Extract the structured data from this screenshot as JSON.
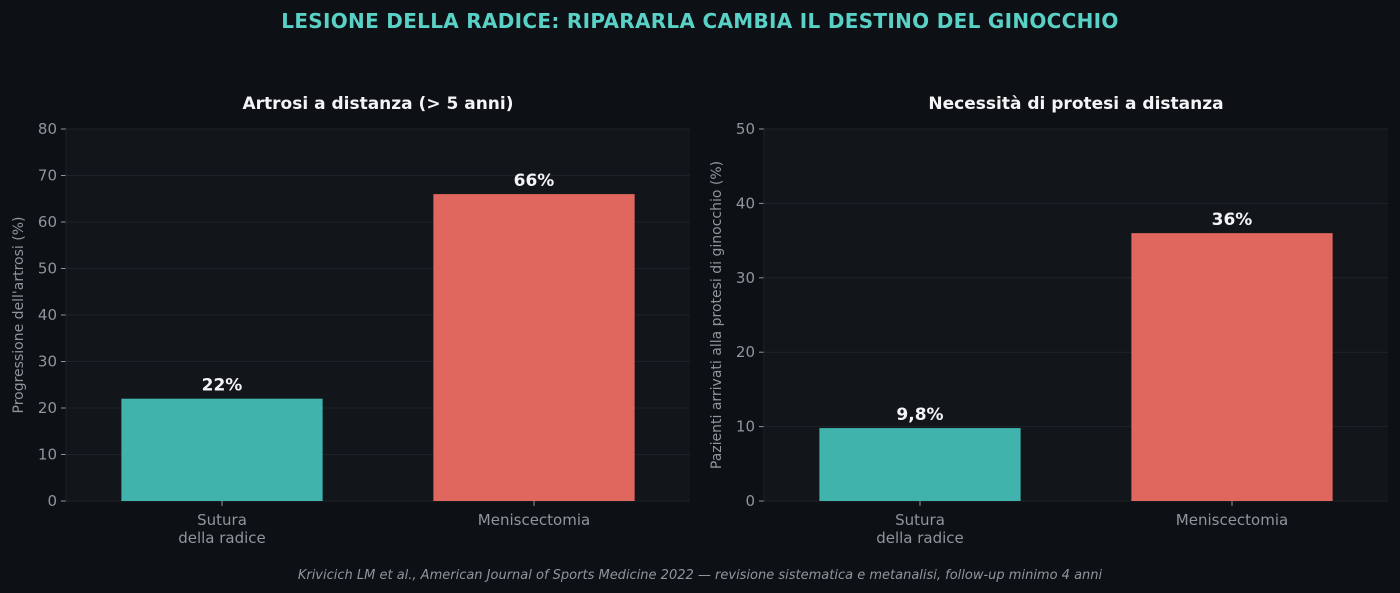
{
  "figure": {
    "title": "LESIONE DELLA RADICE: RIPARARLA CAMBIA IL DESTINO DEL GINOCCHIO",
    "footnote": "Krivicich LM et al., American Journal of Sports Medicine 2022 — revisione sistematica e metanalisi, follow-up minimo 4 anni"
  },
  "colors": {
    "background": "#0d1014",
    "panel": "#12161a",
    "grid": "#1d2328",
    "title_accent": "#5ad1c6",
    "bar_repair": "#40b3ac",
    "bar_removal": "#e0675d",
    "text": "#f2f4f5",
    "muted": "#8f969c"
  },
  "chart_data": [
    {
      "type": "bar",
      "title": "Artrosi a distanza (> 5 anni)",
      "ylabel": "Progressione dell'artrosi (%)",
      "xlabel": "",
      "categories": [
        [
          "Sutura",
          "della radice"
        ],
        [
          "Meniscectomia"
        ]
      ],
      "values": [
        22,
        66
      ],
      "value_labels": [
        "22%",
        "66%"
      ],
      "bar_colors": [
        "#40b3ac",
        "#e0675d"
      ],
      "ylim": [
        0,
        80
      ],
      "yticks": [
        0,
        10,
        20,
        30,
        40,
        50,
        60,
        70,
        80
      ],
      "grid": true,
      "legend": "none"
    },
    {
      "type": "bar",
      "title": "Necessità di protesi a distanza",
      "ylabel": "Pazienti arrivati alla protesi di ginocchio (%)",
      "xlabel": "",
      "categories": [
        [
          "Sutura",
          "della radice"
        ],
        [
          "Meniscectomia"
        ]
      ],
      "values": [
        9.8,
        36
      ],
      "value_labels": [
        "9,8%",
        "36%"
      ],
      "bar_colors": [
        "#40b3ac",
        "#e0675d"
      ],
      "ylim": [
        0,
        50
      ],
      "yticks": [
        0,
        10,
        20,
        30,
        40,
        50
      ],
      "grid": true,
      "legend": "none"
    }
  ]
}
